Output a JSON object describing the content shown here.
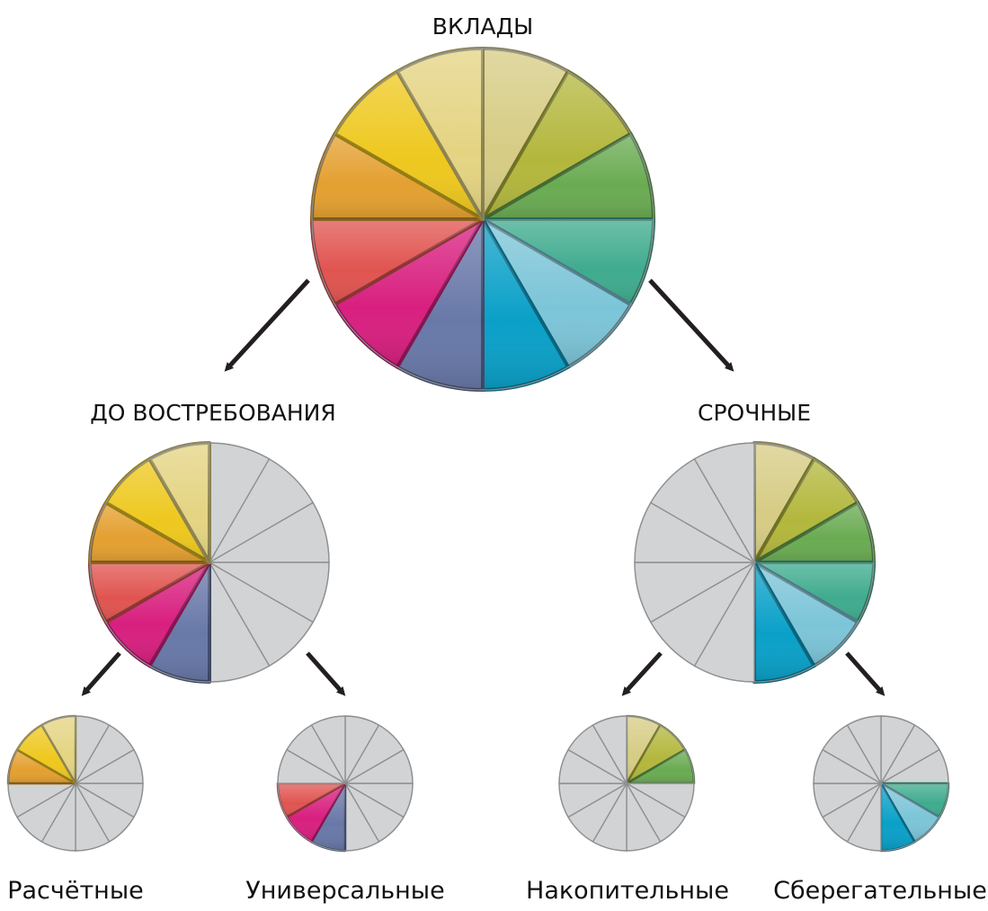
{
  "root": {
    "label": "ВКЛАДЫ"
  },
  "branches": [
    {
      "label": "ДО ВОСТРЕБОВАНИЯ",
      "leaves": [
        {
          "label": "Расчётные"
        },
        {
          "label": "Универсальные"
        }
      ]
    },
    {
      "label": "СРОЧНЫЕ",
      "leaves": [
        {
          "label": "Накопительные"
        },
        {
          "label": "Сберегательные"
        }
      ]
    }
  ],
  "palette": {
    "segments": [
      "#d6cc84",
      "#b3b73c",
      "#6aab52",
      "#3fab8e",
      "#7cc5d8",
      "#0aa0c8",
      "#6878a8",
      "#d81f7f",
      "#e05450",
      "#e4a030",
      "#eec81e",
      "#e4d482"
    ],
    "neutral_fill": "#d1d3d4",
    "neutral_line": "#8e9093",
    "arrow": "#231f20"
  },
  "wheels": [
    {
      "id": "vklady",
      "colored": [
        0,
        1,
        2,
        3,
        4,
        5,
        6,
        7,
        8,
        9,
        10,
        11
      ]
    },
    {
      "id": "do-vostrebovaniya",
      "colored": [
        6,
        7,
        8,
        9,
        10,
        11
      ]
    },
    {
      "id": "srochnye",
      "colored": [
        0,
        1,
        2,
        3,
        4,
        5
      ]
    },
    {
      "id": "raschetnye",
      "colored": [
        9,
        10,
        11
      ]
    },
    {
      "id": "universalnye",
      "colored": [
        6,
        7,
        8
      ]
    },
    {
      "id": "nakopitelnye",
      "colored": [
        0,
        1,
        2
      ]
    },
    {
      "id": "sberegatelnye",
      "colored": [
        3,
        4,
        5
      ]
    }
  ]
}
